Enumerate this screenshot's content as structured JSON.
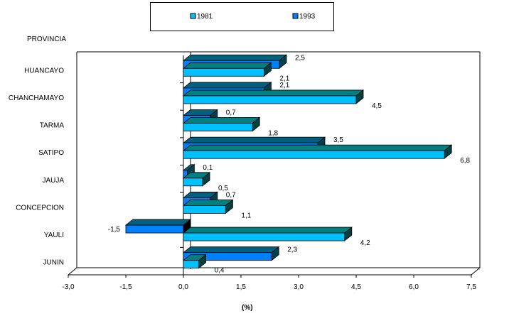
{
  "chart_data": {
    "type": "bar",
    "orientation": "horizontal-3d",
    "title": "",
    "ylabel": "PROVINCIA",
    "xlabel": "(%)",
    "xlim": [
      -3.0,
      7.5
    ],
    "xticks": [
      "-3,0",
      "-1,5",
      "0,0",
      "1,5",
      "3,0",
      "4,5",
      "6,0",
      "7,5"
    ],
    "categories": [
      "HUANCAYO",
      "CHANCHAMAYO",
      "TARMA",
      "SATIPO",
      "JAUJA",
      "CONCEPCION",
      "YAULI",
      "JUNIN"
    ],
    "series": [
      {
        "name": "1993",
        "color": "#0080FF",
        "top": "#006080",
        "side": "#004050",
        "values": [
          2.5,
          2.1,
          0.7,
          3.5,
          0.1,
          0.7,
          -1.5,
          2.3
        ],
        "labels": [
          "2,5",
          "2,1",
          "0,7",
          "3,5",
          "0,1",
          "0,7",
          "-1,5",
          "2,3"
        ]
      },
      {
        "name": "1981",
        "color": "#00C0FF",
        "top": "#008080",
        "side": "#004040",
        "values": [
          2.1,
          4.5,
          1.8,
          6.8,
          0.5,
          1.1,
          4.2,
          0.4
        ],
        "labels": [
          "2,1",
          "4,5",
          "1,8",
          "6,8",
          "0,5",
          "1,1",
          "4,2",
          "0,4"
        ]
      }
    ],
    "legend": {
      "position": "top",
      "entries": [
        "1981",
        "1993"
      ]
    },
    "grid": false
  }
}
